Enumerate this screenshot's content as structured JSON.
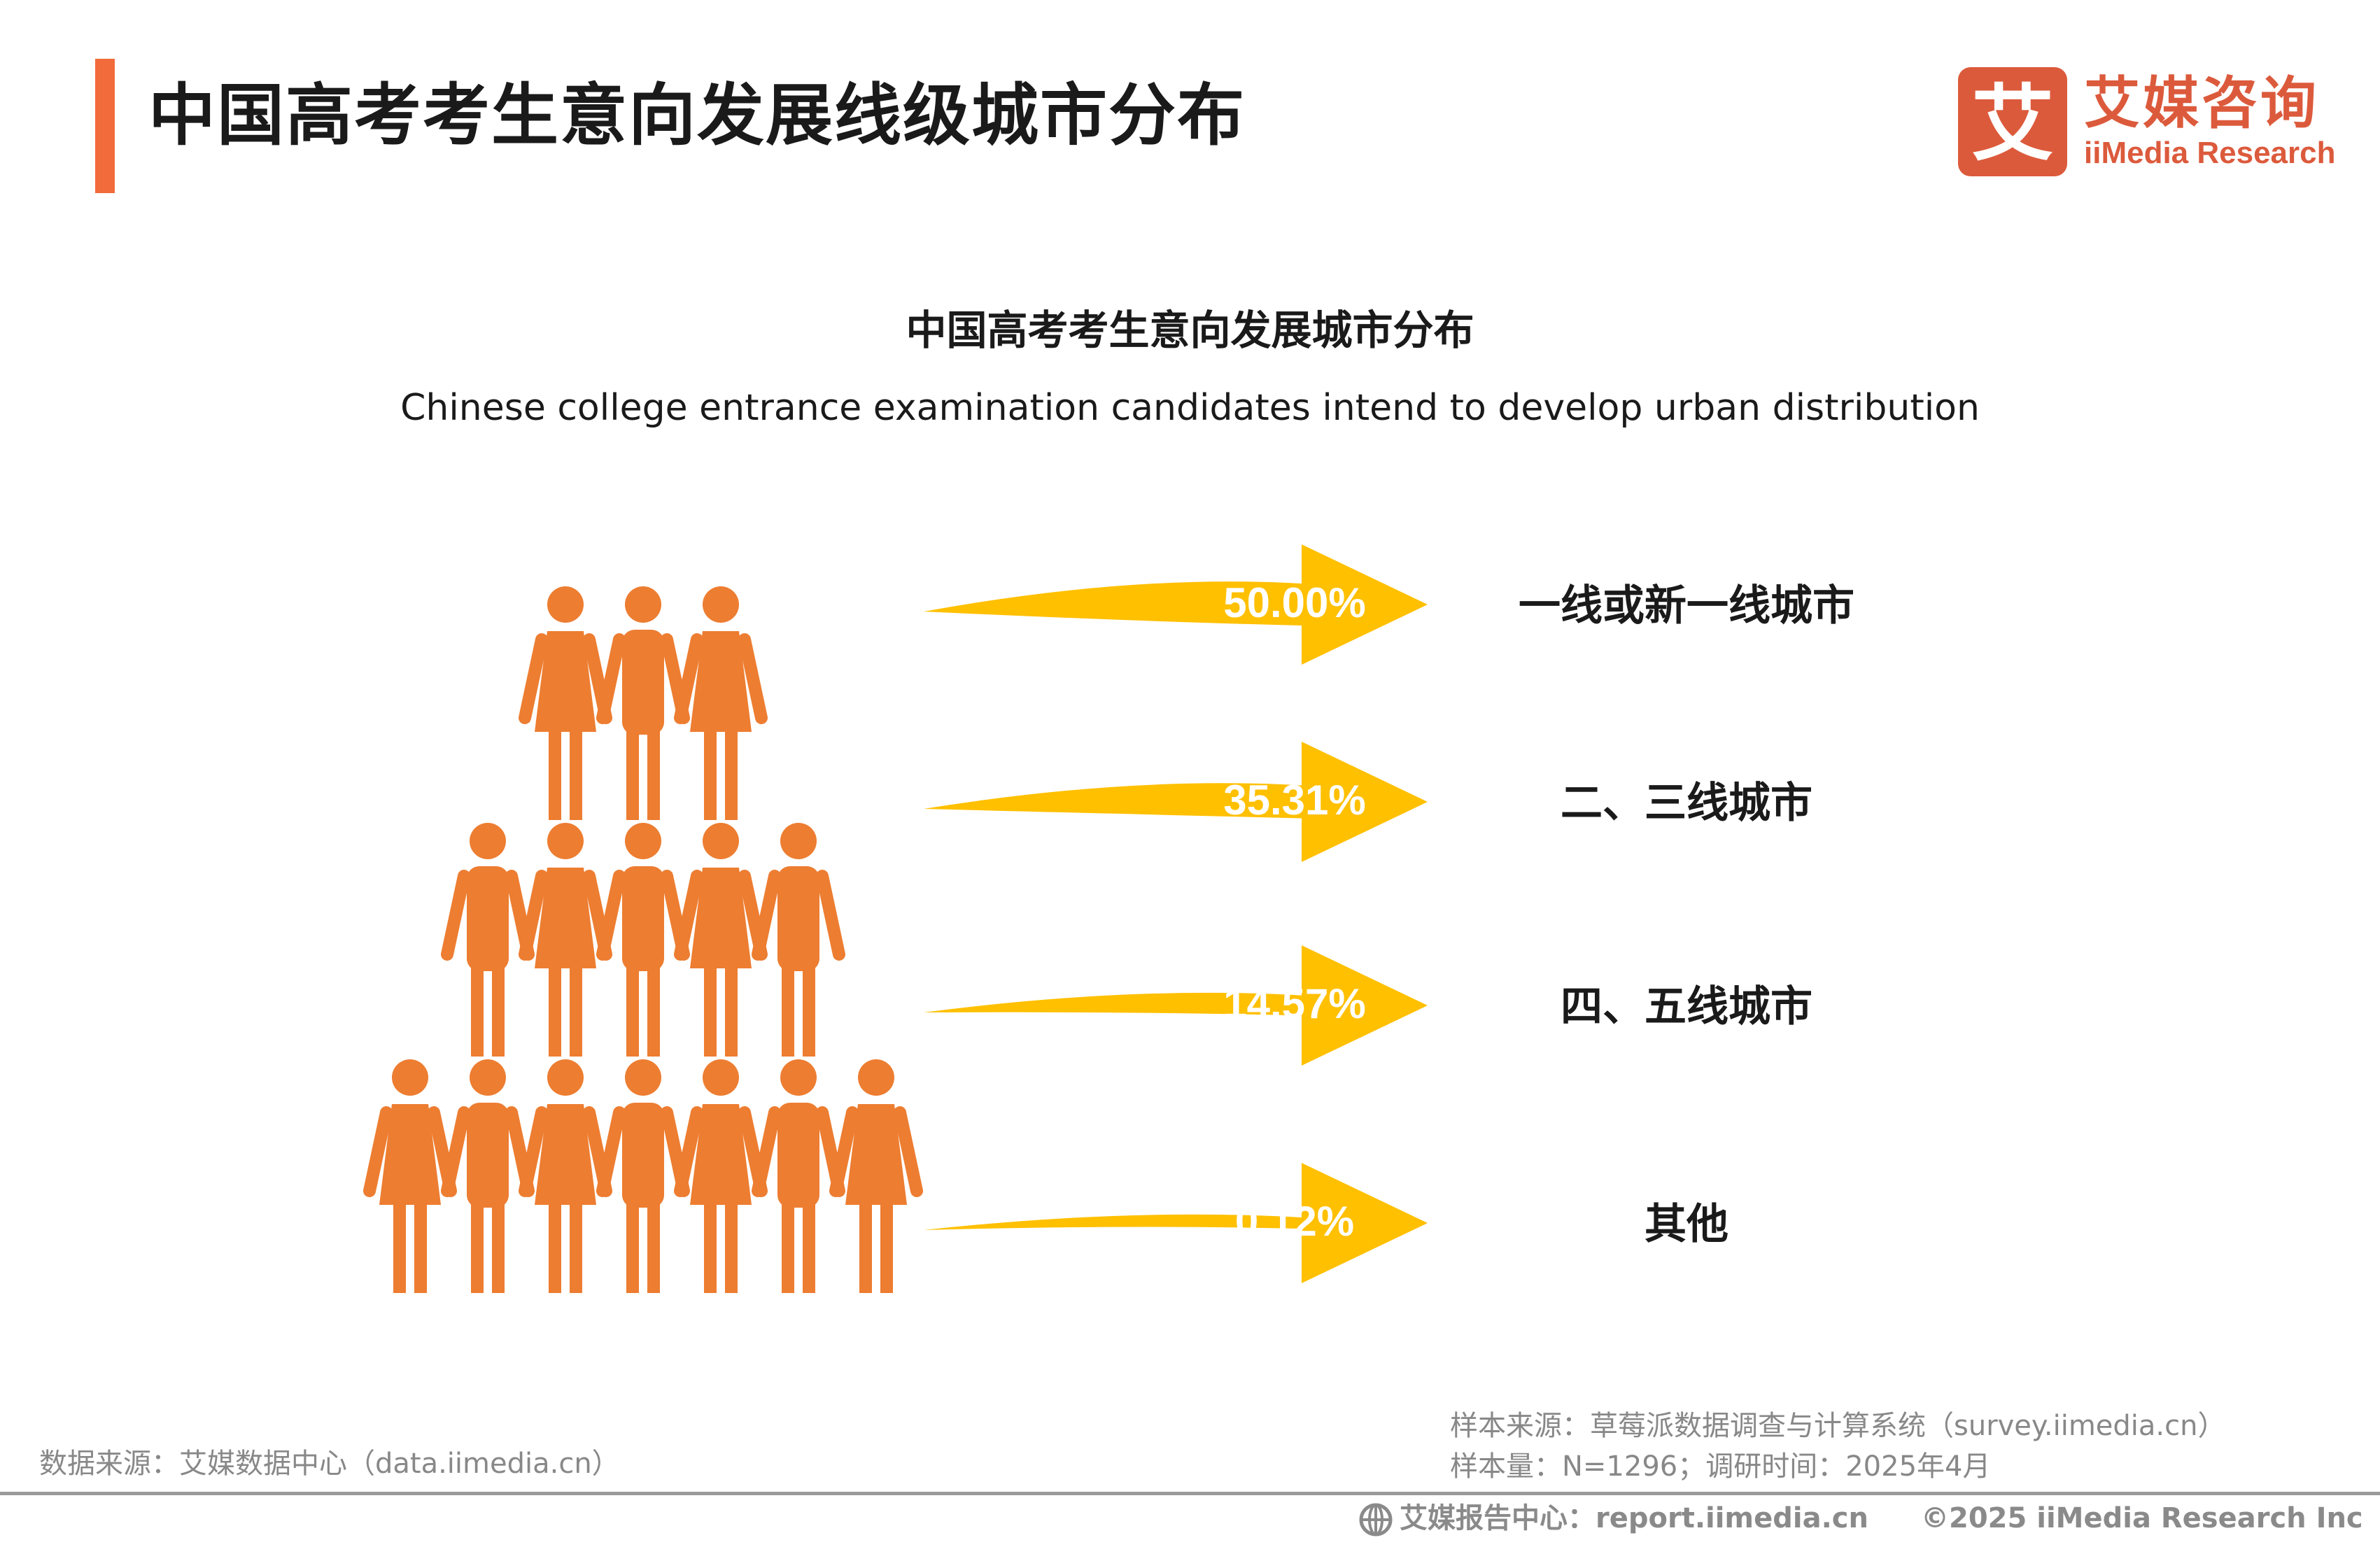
{
  "header": {
    "title": "中国高考考生意向发展线级城市分布",
    "accent_color": "#f26b3a"
  },
  "logo": {
    "mark": "艾",
    "cn": "艾媒咨询",
    "en": "iiMedia Research",
    "color": "#dc5a3c"
  },
  "chart_data": {
    "type": "bar",
    "title": "中国高考考生意向发展城市分布",
    "subtitle": "Chinese college entrance examination candidates intend to develop urban distribution",
    "unit": "%",
    "categories": [
      "一线或新一线城市",
      "二、三线城市",
      "四、五线城市",
      "其他"
    ],
    "values": [
      50.0,
      35.31,
      14.57,
      0.12
    ],
    "labels": [
      "50.00%",
      "35.31%",
      "14.57%",
      "0.12%"
    ],
    "arrow_color": "#ffc000",
    "people_color": "#ed7d31",
    "label_color": "#ffffff"
  },
  "footer": {
    "data_source": "数据来源：艾媒数据中心（data.iimedia.cn）",
    "sample_source": "样本来源：草莓派数据调查与计算系统（survey.iimedia.cn）",
    "sample_size": "样本量：N=1296；调研时间：2025年4月",
    "report_center": "艾媒报告中心：report.iimedia.cn",
    "copyright": "©2025  iiMedia Research  Inc"
  }
}
